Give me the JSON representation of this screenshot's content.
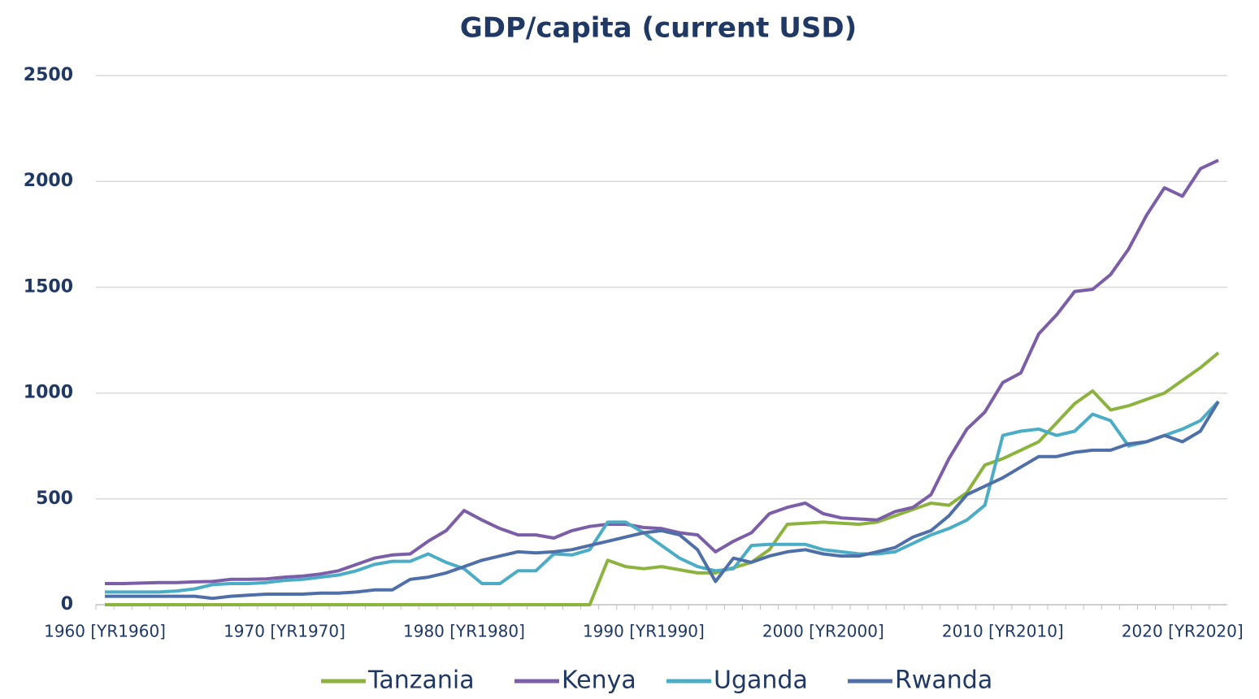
{
  "chart_data": {
    "type": "line",
    "title": "GDP/capita (current USD)",
    "categories": [
      "1960 [YR1960]",
      null,
      null,
      null,
      null,
      null,
      null,
      null,
      null,
      null,
      "1970 [YR1970]",
      null,
      null,
      null,
      null,
      null,
      null,
      null,
      null,
      null,
      "1980 [YR1980]",
      null,
      null,
      null,
      null,
      null,
      null,
      null,
      null,
      null,
      "1990 [YR1990]",
      null,
      null,
      null,
      null,
      null,
      null,
      null,
      null,
      null,
      "2000 [YR2000]",
      null,
      null,
      null,
      null,
      null,
      null,
      null,
      null,
      null,
      "2010 [YR2010]",
      null,
      null,
      null,
      null,
      null,
      null,
      null,
      null,
      null,
      "2020 [YR2020]",
      null,
      null
    ],
    "series": [
      {
        "name": "Tanzania",
        "color": "#8db33f",
        "values": [
          0,
          0,
          0,
          0,
          0,
          0,
          0,
          0,
          0,
          0,
          0,
          0,
          0,
          0,
          0,
          0,
          0,
          0,
          0,
          0,
          0,
          0,
          0,
          0,
          0,
          0,
          0,
          0,
          210,
          180,
          170,
          180,
          165,
          150,
          150,
          175,
          200,
          260,
          380,
          385,
          390,
          385,
          380,
          390,
          420,
          450,
          480,
          470,
          530,
          660,
          690,
          730,
          770,
          860,
          950,
          1010,
          920,
          940,
          970,
          1000,
          1060,
          1120,
          1190
        ]
      },
      {
        "name": "Kenya",
        "color": "#7b5ea7",
        "values": [
          100,
          100,
          102,
          105,
          105,
          108,
          110,
          120,
          120,
          122,
          130,
          135,
          145,
          160,
          190,
          220,
          235,
          240,
          300,
          350,
          445,
          400,
          360,
          330,
          330,
          315,
          350,
          370,
          380,
          380,
          365,
          360,
          340,
          330,
          250,
          300,
          340,
          430,
          460,
          480,
          430,
          410,
          405,
          400,
          440,
          460,
          520,
          690,
          830,
          910,
          1050,
          1095,
          1280,
          1370,
          1480,
          1490,
          1560,
          1680,
          1840,
          1970,
          1930,
          2060,
          2100
        ]
      },
      {
        "name": "Uganda",
        "color": "#4bacc6",
        "values": [
          60,
          60,
          60,
          60,
          65,
          75,
          95,
          100,
          100,
          105,
          115,
          120,
          130,
          140,
          160,
          190,
          205,
          205,
          240,
          200,
          170,
          100,
          100,
          160,
          160,
          240,
          235,
          260,
          390,
          390,
          340,
          280,
          220,
          180,
          160,
          170,
          280,
          285,
          285,
          285,
          260,
          250,
          240,
          240,
          250,
          290,
          330,
          360,
          400,
          470,
          800,
          820,
          830,
          800,
          820,
          900,
          870,
          750,
          770,
          800,
          830,
          870,
          960
        ]
      },
      {
        "name": "Rwanda",
        "color": "#4f6fa8",
        "values": [
          40,
          40,
          40,
          40,
          40,
          40,
          30,
          40,
          45,
          50,
          50,
          50,
          55,
          55,
          60,
          70,
          70,
          120,
          130,
          150,
          180,
          210,
          230,
          250,
          245,
          250,
          260,
          280,
          300,
          320,
          340,
          350,
          330,
          260,
          110,
          220,
          200,
          230,
          250,
          260,
          240,
          230,
          230,
          250,
          270,
          320,
          350,
          420,
          520,
          560,
          600,
          650,
          700,
          700,
          720,
          730,
          730,
          760,
          770,
          800,
          770,
          820,
          960
        ]
      }
    ],
    "ylim": [
      0,
      2500
    ],
    "yticks": [
      0,
      500,
      1000,
      1500,
      2000,
      2500
    ],
    "grid": true,
    "legend": "bottom"
  }
}
